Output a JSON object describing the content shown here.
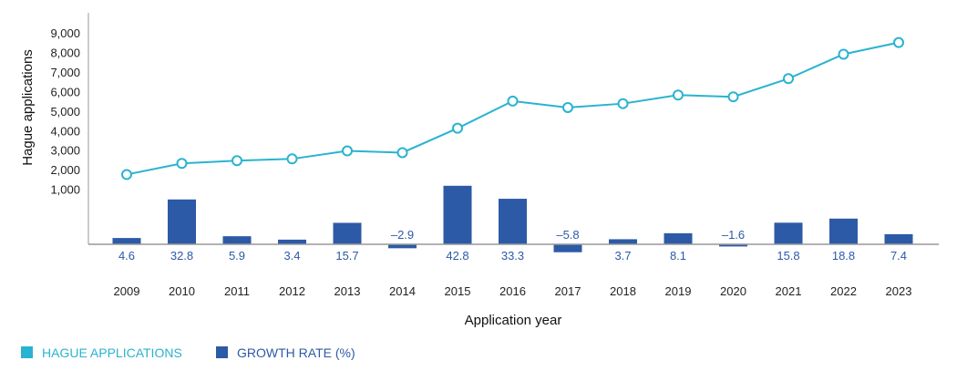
{
  "chart_data": {
    "type": "bar+line",
    "title": "",
    "xlabel": "Application year",
    "ylabel": "Hague applications",
    "categories": [
      "2009",
      "2010",
      "2011",
      "2012",
      "2013",
      "2014",
      "2015",
      "2016",
      "2017",
      "2018",
      "2019",
      "2020",
      "2021",
      "2022",
      "2023"
    ],
    "y_ticks": [
      "1,000",
      "2,000",
      "3,000",
      "4,000",
      "5,000",
      "6,000",
      "7,000",
      "8,000",
      "9,000"
    ],
    "ylim": [
      0,
      9500
    ],
    "series": [
      {
        "name": "HAGUE APPLICATIONS",
        "kind": "line",
        "color": "#2ab3d0",
        "values": [
          1800,
          2370,
          2510,
          2600,
          3010,
          2920,
          4170,
          5560,
          5230,
          5430,
          5870,
          5780,
          6710,
          7960,
          8560
        ]
      },
      {
        "name": "GROWTH RATE (%)",
        "kind": "bar",
        "color": "#2d5aa6",
        "values": [
          4.6,
          32.8,
          5.9,
          3.4,
          15.7,
          -2.9,
          42.8,
          33.3,
          -5.8,
          3.7,
          8.1,
          -1.6,
          15.8,
          18.8,
          7.4
        ],
        "labels": [
          "4.6",
          "32.8",
          "5.9",
          "3.4",
          "15.7",
          "–2.9",
          "42.8",
          "33.3",
          "–5.8",
          "3.7",
          "8.1",
          "–1.6",
          "15.8",
          "18.8",
          "7.4"
        ]
      }
    ],
    "legend": {
      "placement": "bottom-left",
      "items": [
        {
          "label": "HAGUE APPLICATIONS",
          "color": "#2ab3d0"
        },
        {
          "label": "GROWTH RATE (%)",
          "color": "#2d5aa6"
        }
      ]
    }
  }
}
